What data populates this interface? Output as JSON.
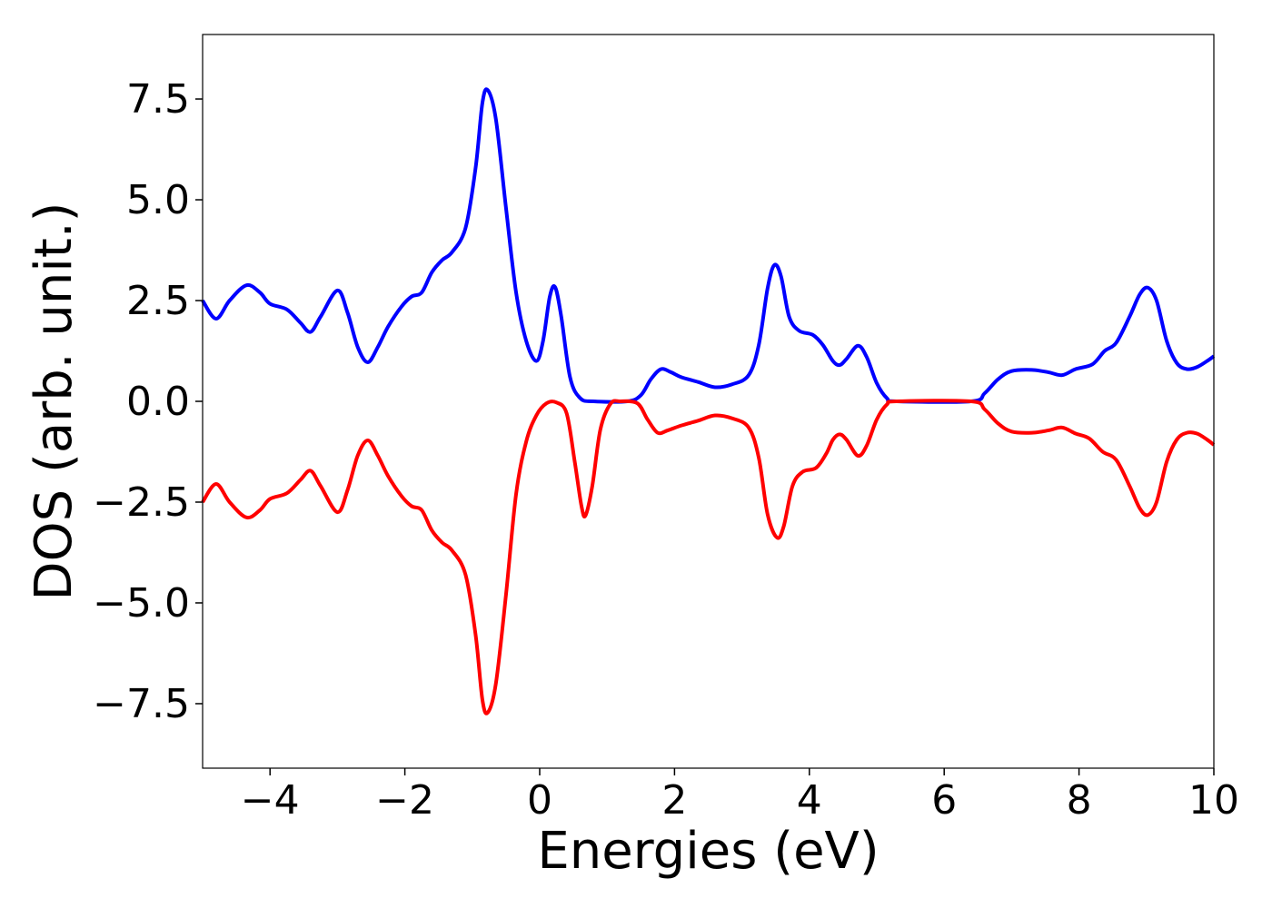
{
  "chart_data": {
    "type": "line",
    "xlabel": "Energies (eV)",
    "ylabel": "DOS (arb. unit.)",
    "xlim": [
      -5,
      10
    ],
    "ylim": [
      -9.1,
      9.1
    ],
    "x_ticks": [
      -4,
      -2,
      0,
      2,
      4,
      6,
      8,
      10
    ],
    "x_tick_labels": [
      "−4",
      "−2",
      "0",
      "2",
      "4",
      "6",
      "8",
      "10"
    ],
    "y_ticks": [
      7.5,
      5.0,
      2.5,
      0.0,
      -2.5,
      -5.0,
      -7.5
    ],
    "y_tick_labels": [
      "7.5",
      "5.0",
      "2.5",
      "0.0",
      "−2.5",
      "−5.0",
      "−7.5"
    ],
    "grid": false,
    "legend": "none",
    "series": [
      {
        "color": "#0000ff",
        "points": [
          [
            -5.0,
            2.5
          ],
          [
            -4.8,
            2.05
          ],
          [
            -4.6,
            2.5
          ],
          [
            -4.35,
            2.88
          ],
          [
            -4.15,
            2.7
          ],
          [
            -4.0,
            2.42
          ],
          [
            -3.75,
            2.28
          ],
          [
            -3.55,
            1.95
          ],
          [
            -3.4,
            1.72
          ],
          [
            -3.25,
            2.1
          ],
          [
            -3.0,
            2.75
          ],
          [
            -2.85,
            2.2
          ],
          [
            -2.7,
            1.35
          ],
          [
            -2.55,
            0.97
          ],
          [
            -2.4,
            1.35
          ],
          [
            -2.25,
            1.85
          ],
          [
            -2.05,
            2.35
          ],
          [
            -1.9,
            2.6
          ],
          [
            -1.75,
            2.7
          ],
          [
            -1.6,
            3.2
          ],
          [
            -1.45,
            3.5
          ],
          [
            -1.3,
            3.7
          ],
          [
            -1.1,
            4.3
          ],
          [
            -0.95,
            5.8
          ],
          [
            -0.85,
            7.4
          ],
          [
            -0.77,
            7.72
          ],
          [
            -0.65,
            7.0
          ],
          [
            -0.5,
            4.8
          ],
          [
            -0.35,
            2.7
          ],
          [
            -0.2,
            1.5
          ],
          [
            -0.05,
            1.0
          ],
          [
            0.05,
            1.5
          ],
          [
            0.15,
            2.6
          ],
          [
            0.23,
            2.83
          ],
          [
            0.32,
            2.1
          ],
          [
            0.45,
            0.6
          ],
          [
            0.6,
            0.08
          ],
          [
            0.8,
            0.0
          ],
          [
            1.3,
            0.0
          ],
          [
            1.5,
            0.15
          ],
          [
            1.65,
            0.55
          ],
          [
            1.8,
            0.8
          ],
          [
            1.95,
            0.72
          ],
          [
            2.1,
            0.6
          ],
          [
            2.35,
            0.48
          ],
          [
            2.6,
            0.35
          ],
          [
            2.85,
            0.42
          ],
          [
            3.1,
            0.65
          ],
          [
            3.25,
            1.4
          ],
          [
            3.38,
            2.8
          ],
          [
            3.48,
            3.38
          ],
          [
            3.58,
            3.1
          ],
          [
            3.7,
            2.1
          ],
          [
            3.85,
            1.75
          ],
          [
            4.05,
            1.65
          ],
          [
            4.2,
            1.4
          ],
          [
            4.35,
            1.0
          ],
          [
            4.45,
            0.9
          ],
          [
            4.55,
            1.05
          ],
          [
            4.72,
            1.38
          ],
          [
            4.85,
            1.1
          ],
          [
            5.0,
            0.45
          ],
          [
            5.15,
            0.08
          ],
          [
            5.3,
            0.0
          ],
          [
            6.4,
            0.0
          ],
          [
            6.6,
            0.2
          ],
          [
            6.8,
            0.55
          ],
          [
            7.0,
            0.75
          ],
          [
            7.3,
            0.78
          ],
          [
            7.55,
            0.72
          ],
          [
            7.75,
            0.65
          ],
          [
            7.95,
            0.8
          ],
          [
            8.2,
            0.92
          ],
          [
            8.38,
            1.25
          ],
          [
            8.55,
            1.45
          ],
          [
            8.75,
            2.1
          ],
          [
            8.9,
            2.65
          ],
          [
            9.02,
            2.82
          ],
          [
            9.15,
            2.5
          ],
          [
            9.3,
            1.5
          ],
          [
            9.45,
            0.95
          ],
          [
            9.6,
            0.8
          ],
          [
            9.75,
            0.85
          ],
          [
            9.9,
            1.0
          ],
          [
            10.0,
            1.12
          ]
        ]
      },
      {
        "color": "#ff0000",
        "points": [
          [
            -5.0,
            -2.5
          ],
          [
            -4.8,
            -2.05
          ],
          [
            -4.6,
            -2.5
          ],
          [
            -4.35,
            -2.88
          ],
          [
            -4.15,
            -2.7
          ],
          [
            -4.0,
            -2.42
          ],
          [
            -3.75,
            -2.28
          ],
          [
            -3.55,
            -1.95
          ],
          [
            -3.4,
            -1.72
          ],
          [
            -3.25,
            -2.1
          ],
          [
            -3.0,
            -2.75
          ],
          [
            -2.85,
            -2.2
          ],
          [
            -2.7,
            -1.35
          ],
          [
            -2.55,
            -0.97
          ],
          [
            -2.4,
            -1.35
          ],
          [
            -2.25,
            -1.85
          ],
          [
            -2.05,
            -2.35
          ],
          [
            -1.9,
            -2.6
          ],
          [
            -1.75,
            -2.7
          ],
          [
            -1.6,
            -3.2
          ],
          [
            -1.45,
            -3.5
          ],
          [
            -1.3,
            -3.7
          ],
          [
            -1.1,
            -4.3
          ],
          [
            -0.95,
            -5.8
          ],
          [
            -0.85,
            -7.4
          ],
          [
            -0.77,
            -7.72
          ],
          [
            -0.65,
            -7.0
          ],
          [
            -0.5,
            -4.8
          ],
          [
            -0.35,
            -2.3
          ],
          [
            -0.2,
            -1.0
          ],
          [
            -0.05,
            -0.35
          ],
          [
            0.1,
            -0.05
          ],
          [
            0.25,
            -0.03
          ],
          [
            0.4,
            -0.3
          ],
          [
            0.52,
            -1.5
          ],
          [
            0.62,
            -2.6
          ],
          [
            0.68,
            -2.83
          ],
          [
            0.78,
            -2.1
          ],
          [
            0.9,
            -0.7
          ],
          [
            1.05,
            -0.06
          ],
          [
            1.2,
            0.0
          ],
          [
            1.45,
            -0.05
          ],
          [
            1.6,
            -0.45
          ],
          [
            1.75,
            -0.78
          ],
          [
            1.9,
            -0.72
          ],
          [
            2.1,
            -0.6
          ],
          [
            2.35,
            -0.48
          ],
          [
            2.6,
            -0.35
          ],
          [
            2.85,
            -0.42
          ],
          [
            3.1,
            -0.65
          ],
          [
            3.25,
            -1.4
          ],
          [
            3.38,
            -2.8
          ],
          [
            3.52,
            -3.38
          ],
          [
            3.62,
            -3.1
          ],
          [
            3.75,
            -2.1
          ],
          [
            3.9,
            -1.75
          ],
          [
            4.1,
            -1.65
          ],
          [
            4.25,
            -1.3
          ],
          [
            4.35,
            -0.95
          ],
          [
            4.45,
            -0.82
          ],
          [
            4.55,
            -0.95
          ],
          [
            4.72,
            -1.35
          ],
          [
            4.85,
            -1.1
          ],
          [
            5.0,
            -0.45
          ],
          [
            5.15,
            -0.08
          ],
          [
            5.3,
            0.0
          ],
          [
            6.4,
            0.0
          ],
          [
            6.6,
            -0.2
          ],
          [
            6.8,
            -0.55
          ],
          [
            7.0,
            -0.75
          ],
          [
            7.3,
            -0.78
          ],
          [
            7.55,
            -0.72
          ],
          [
            7.75,
            -0.65
          ],
          [
            7.95,
            -0.8
          ],
          [
            8.15,
            -0.92
          ],
          [
            8.35,
            -1.25
          ],
          [
            8.55,
            -1.45
          ],
          [
            8.75,
            -2.1
          ],
          [
            8.9,
            -2.65
          ],
          [
            9.02,
            -2.82
          ],
          [
            9.15,
            -2.5
          ],
          [
            9.3,
            -1.5
          ],
          [
            9.45,
            -0.95
          ],
          [
            9.6,
            -0.78
          ],
          [
            9.75,
            -0.8
          ],
          [
            9.9,
            -0.95
          ],
          [
            10.0,
            -1.08
          ]
        ]
      }
    ]
  }
}
